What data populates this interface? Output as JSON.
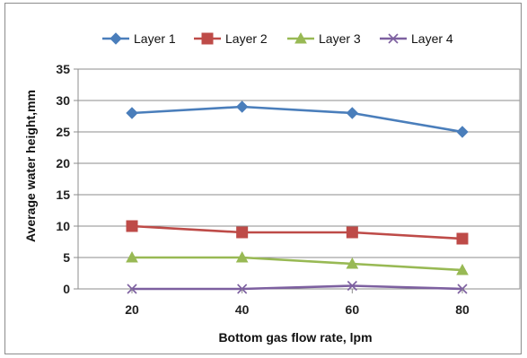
{
  "chart_data": {
    "type": "line",
    "title": "",
    "xlabel": "Bottom gas flow rate, lpm",
    "ylabel": "Average water height,mm",
    "x": [
      20,
      40,
      60,
      80
    ],
    "ylim": [
      0,
      35
    ],
    "yticks": [
      0,
      5,
      10,
      15,
      20,
      25,
      30,
      35
    ],
    "grid": "horizontal",
    "legend": "top",
    "series": [
      {
        "name": "Layer 1",
        "values": [
          28,
          29,
          28,
          25
        ],
        "color": "#4a7ebb",
        "marker": "diamond"
      },
      {
        "name": "Layer 2",
        "values": [
          10,
          9,
          9,
          8
        ],
        "color": "#be4b48",
        "marker": "square"
      },
      {
        "name": "Layer 3",
        "values": [
          5,
          5,
          4,
          3
        ],
        "color": "#98b954",
        "marker": "triangle"
      },
      {
        "name": "Layer 4",
        "values": [
          0,
          0,
          0.5,
          0
        ],
        "color": "#7d60a0",
        "marker": "x"
      }
    ]
  }
}
